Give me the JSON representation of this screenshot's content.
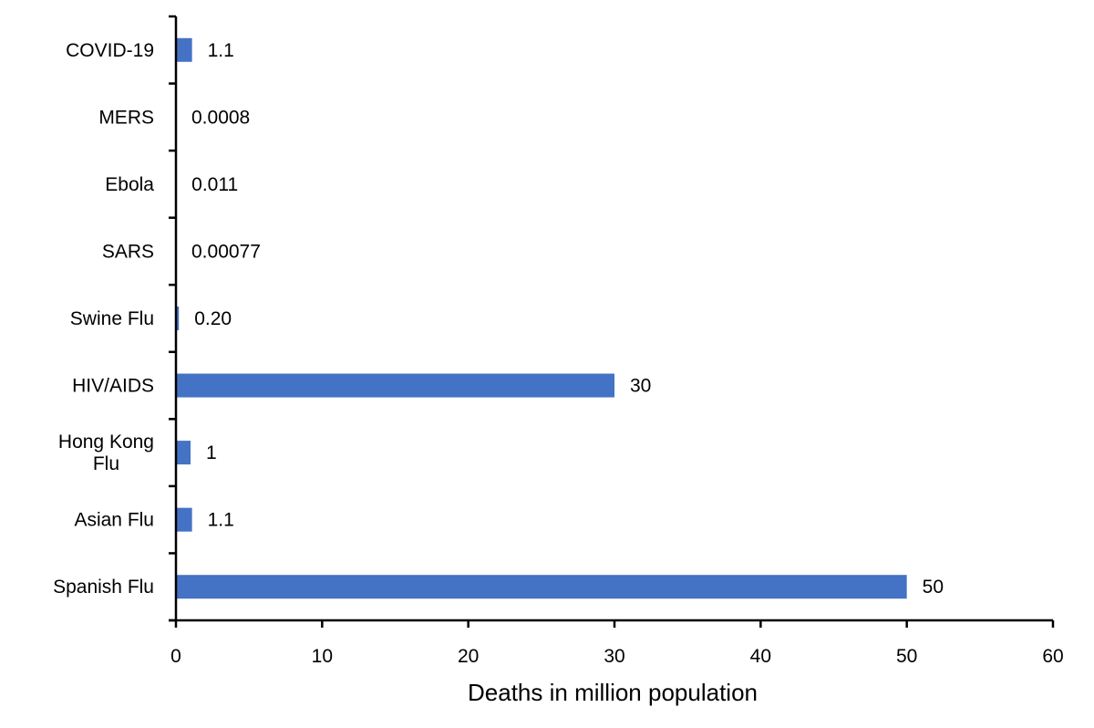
{
  "chart_data": {
    "type": "bar",
    "orientation": "horizontal",
    "categories": [
      "COVID-19",
      "MERS",
      "Ebola",
      "SARS",
      "Swine Flu",
      "HIV/AIDS",
      "Hong Kong Flu",
      "Asian Flu",
      "Spanish Flu"
    ],
    "values": [
      1.1,
      0.0008,
      0.011,
      0.00077,
      0.2,
      30,
      1,
      1.1,
      50
    ],
    "data_labels": [
      "1.1",
      "0.0008",
      "0.011",
      "0.00077",
      "0.20",
      "30",
      "1",
      "1.1",
      "50"
    ],
    "xlabel": "Deaths in million population",
    "ylabel": "",
    "xlim": [
      0,
      60
    ],
    "xticks": [
      0,
      10,
      20,
      30,
      40,
      50,
      60
    ],
    "grid": false,
    "legend": "none",
    "bar_color": "#4472C4"
  }
}
